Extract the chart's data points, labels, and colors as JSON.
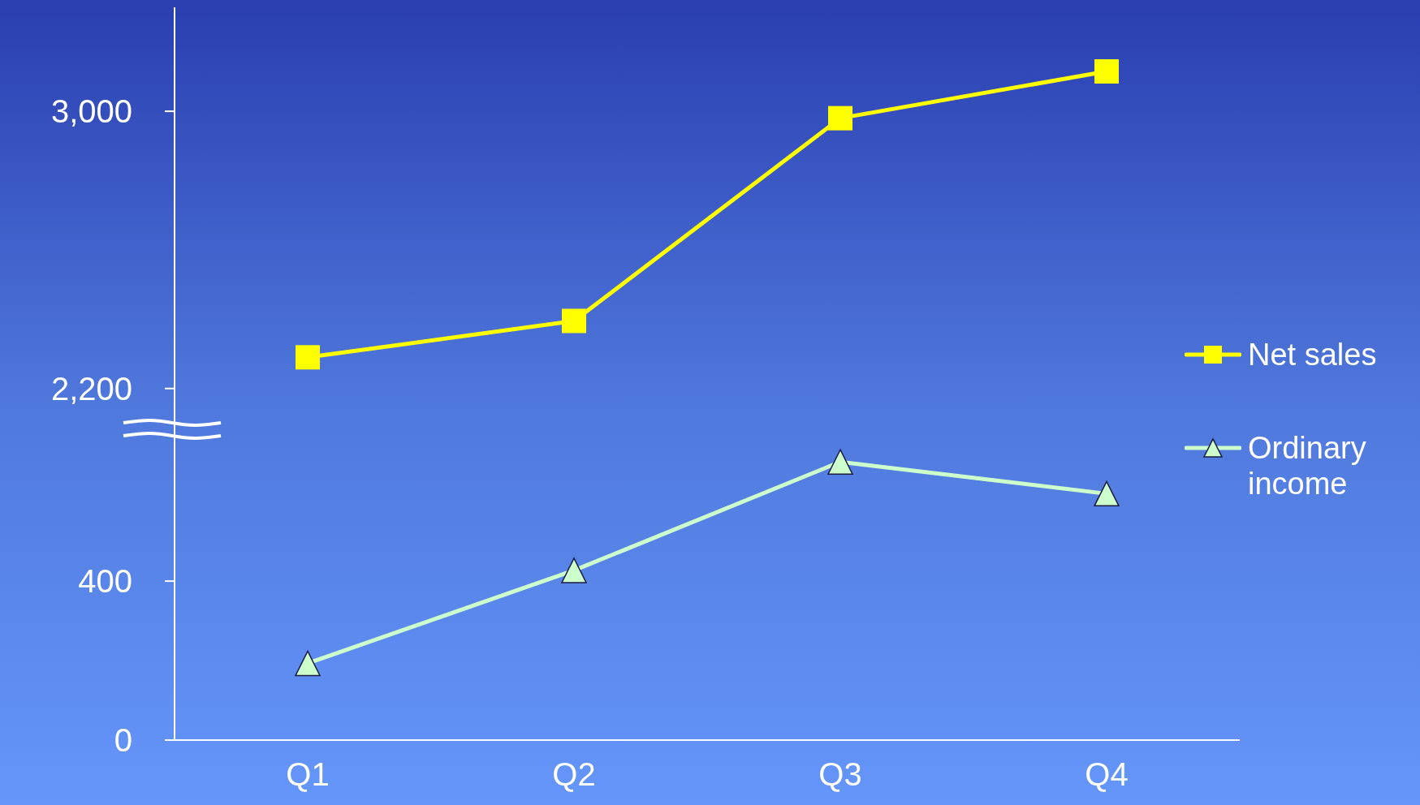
{
  "chart_data": [
    {
      "type": "line",
      "ylim": [
        2080,
        3300
      ],
      "yticks": [
        {
          "value": 2200,
          "label": "2,200"
        },
        {
          "value": 3000,
          "label": "3,000"
        }
      ],
      "tick_labels": "y",
      "legend": "bottom right",
      "marker": "square",
      "line_style": "solid",
      "series": [
        {
          "name": "Net sales",
          "color": "#ffff00",
          "values": [
            2290,
            2395,
            2980,
            3115
          ]
        }
      ]
    },
    {
      "type": "line",
      "categories": [
        "Q1",
        "Q2",
        "Q3",
        "Q4"
      ],
      "ylim": [
        0,
        780
      ],
      "yticks": [
        0,
        400
      ],
      "legend": "top right",
      "marker": "triangle",
      "line_style": "solid",
      "series": [
        {
          "name": "Ordinary income",
          "color": "#ccffcc",
          "values": [
            193,
            427,
            700,
            620
          ]
        }
      ]
    }
  ]
}
